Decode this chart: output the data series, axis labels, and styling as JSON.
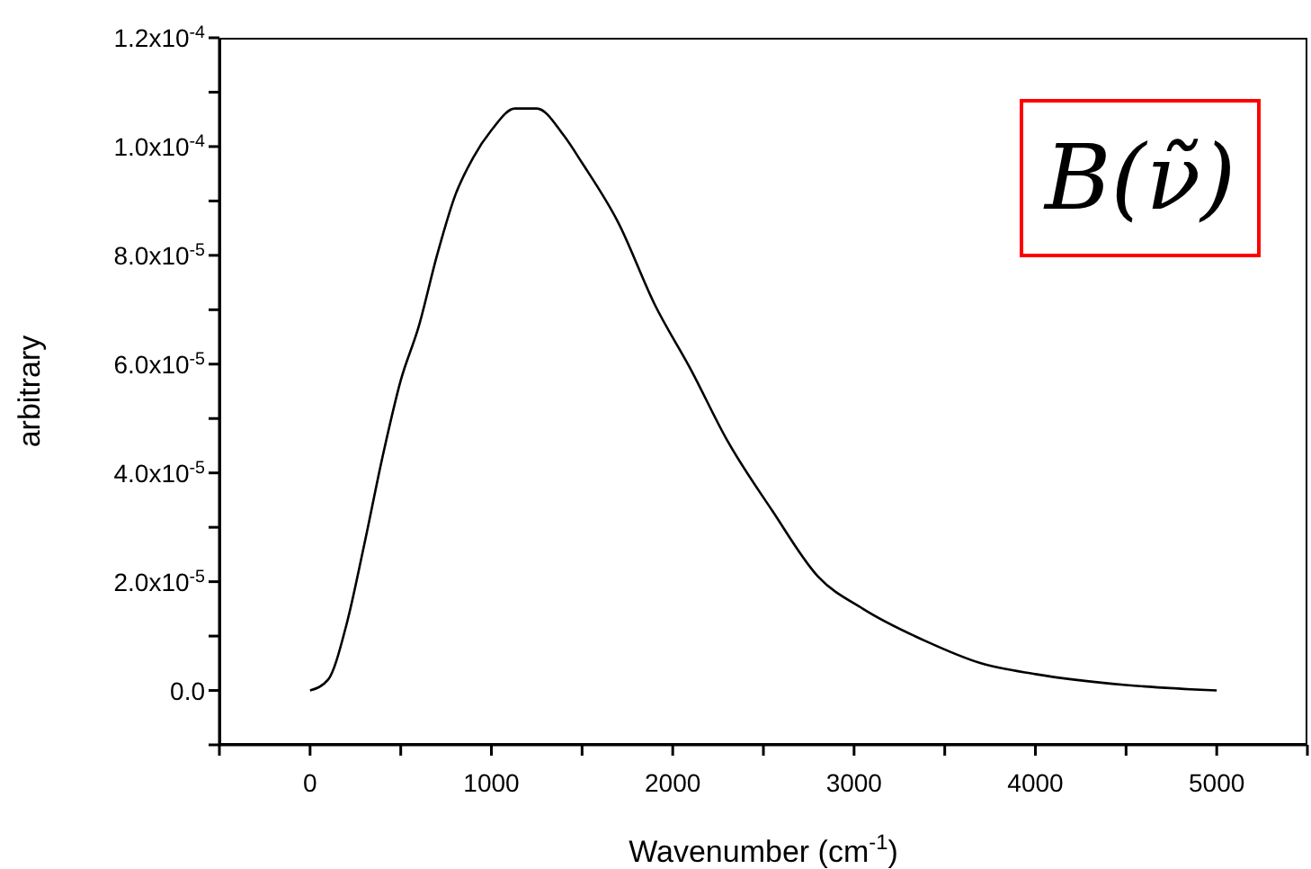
{
  "chart_data": {
    "type": "line",
    "xlabel": "Wavenumber (cm$^{-1}$)",
    "ylabel": "arbitrary",
    "annotations": [
      "B(ν̃)"
    ],
    "xlim": [
      -500,
      5500
    ],
    "xticks": [
      {
        "value": -500,
        "label": null
      },
      0,
      {
        "value": 500,
        "label": null
      },
      1000,
      {
        "value": 1500,
        "label": null
      },
      2000,
      {
        "value": 2500,
        "label": null
      },
      3000,
      {
        "value": 3500,
        "label": null
      },
      4000,
      {
        "value": 4500,
        "label": null
      },
      5000,
      {
        "value": 5500,
        "label": null
      }
    ],
    "ylim": [
      -1e-05,
      0.00012
    ],
    "yticks": [
      {
        "value": -1e-05,
        "label": null
      },
      {
        "value": 0,
        "label": "0.0"
      },
      {
        "value": 1e-05,
        "label": null
      },
      {
        "value": 2e-05,
        "label": "2.0x10$^{-5}$"
      },
      {
        "value": 3e-05,
        "label": null
      },
      {
        "value": 4e-05,
        "label": "4.0x10$^{-5}$"
      },
      {
        "value": 5e-05,
        "label": null
      },
      {
        "value": 6e-05,
        "label": "6.0x10$^{-5}$"
      },
      {
        "value": 7e-05,
        "label": null
      },
      {
        "value": 8e-05,
        "label": "8.0x10$^{-5}$"
      },
      {
        "value": 9e-05,
        "label": null
      },
      {
        "value": 0.0001,
        "label": "1.0x10$^{-4}$"
      },
      {
        "value": 0.00011,
        "label": null
      },
      {
        "value": 0.00012,
        "label": "1.2x10$^{-4}$"
      }
    ],
    "grid": false,
    "x": [
      0,
      100,
      200,
      300,
      400,
      500,
      600,
      700,
      800,
      900,
      1000,
      1130,
      1250,
      1400,
      1500,
      1700,
      1900,
      2100,
      2300,
      2550,
      2800,
      3050,
      3400,
      3700,
      4000,
      4500,
      5000
    ],
    "series": [
      {
        "color": "#000000",
        "values": [
          0,
          2e-06,
          1.2e-05,
          2.7e-05,
          4.3e-05,
          5.7e-05,
          6.7e-05,
          8e-05,
          9.1e-05,
          9.8e-05,
          0.000103,
          0.000107,
          0.000107,
          0.000102,
          9.7e-05,
          8.6e-05,
          7.1e-05,
          5.9e-05,
          4.6e-05,
          3.3e-05,
          2.1e-05,
          1.5e-05,
          9e-06,
          5e-06,
          3e-06,
          1e-06,
          0
        ]
      }
    ]
  }
}
